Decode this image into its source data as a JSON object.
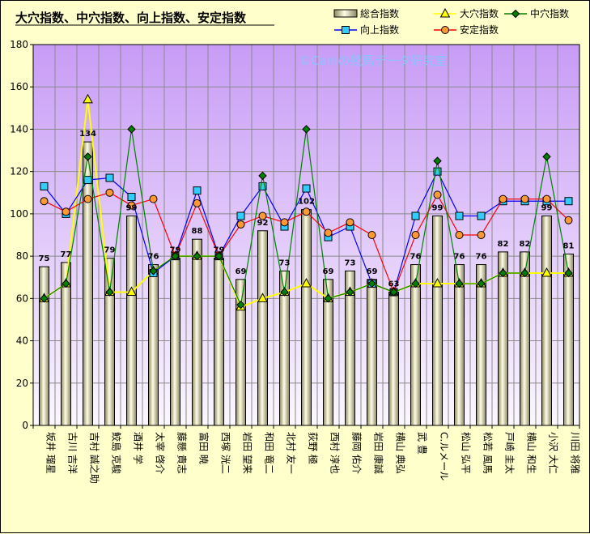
{
  "chart_data": {
    "type": "bar",
    "title": "大穴指数、中穴指数、向上指数、安定指数",
    "watermark": "©Caniの競馬データ研究室",
    "ylim": [
      0,
      180
    ],
    "yticks": [
      0,
      20,
      40,
      60,
      80,
      100,
      120,
      140,
      160,
      180
    ],
    "grid": true,
    "legend_position": "top-right",
    "categories": [
      "坂井 瑠星",
      "古川 吉洋",
      "吉村 誠之助",
      "鮫島 克駿",
      "酒井 学",
      "太宰 啓介",
      "藤懸 貴志",
      "富田 暁",
      "西塚 洸二",
      "岩田 望来",
      "和田 竜二",
      "北村 友一",
      "荻野 極",
      "西村 淳也",
      "藤岡 佑介",
      "岩田 康誠",
      "横山 典弘",
      "武 豊",
      "C.ルメール",
      "松山 弘平",
      "松若 風馬",
      "戸崎 圭太",
      "横山 和生",
      "小沢 大仁",
      "川田 将雅"
    ],
    "series": [
      {
        "name": "総合指数",
        "type": "bar",
        "color": "#f2eec0",
        "labels": true,
        "values": [
          75,
          77,
          134,
          79,
          99,
          76,
          79,
          88,
          79,
          69,
          92,
          73,
          102,
          69,
          73,
          69,
          63,
          76,
          99,
          76,
          76,
          82,
          82,
          99,
          81
        ]
      },
      {
        "name": "大穴指数",
        "type": "line",
        "color": "#ffff00",
        "marker": "triangle",
        "values": [
          60,
          67,
          154,
          63,
          63,
          73,
          80,
          80,
          80,
          56,
          60,
          63,
          67,
          60,
          63,
          67,
          63,
          67,
          67,
          67,
          67,
          72,
          72,
          72,
          72
        ]
      },
      {
        "name": "中穴指数",
        "type": "line",
        "color": "#008000",
        "marker": "diamond",
        "values": [
          60,
          67,
          127,
          63,
          140,
          73,
          80,
          80,
          80,
          57,
          118,
          63,
          140,
          60,
          63,
          67,
          63,
          67,
          125,
          67,
          67,
          72,
          72,
          127,
          72
        ]
      },
      {
        "name": "向上指数",
        "type": "line",
        "color": "#0000ff",
        "marker": "square",
        "values": [
          113,
          100,
          116,
          117,
          108,
          72,
          80,
          111,
          80,
          99,
          113,
          94,
          112,
          89,
          94,
          67,
          63,
          99,
          120,
          99,
          99,
          106,
          106,
          106,
          106
        ]
      },
      {
        "name": "安定指数",
        "type": "line",
        "color": "#ff0000",
        "marker": "circle",
        "values": [
          106,
          101,
          107,
          110,
          104,
          107,
          80,
          105,
          80,
          95,
          99,
          96,
          101,
          91,
          96,
          90,
          63,
          90,
          109,
          90,
          90,
          107,
          107,
          107,
          97
        ]
      }
    ]
  }
}
